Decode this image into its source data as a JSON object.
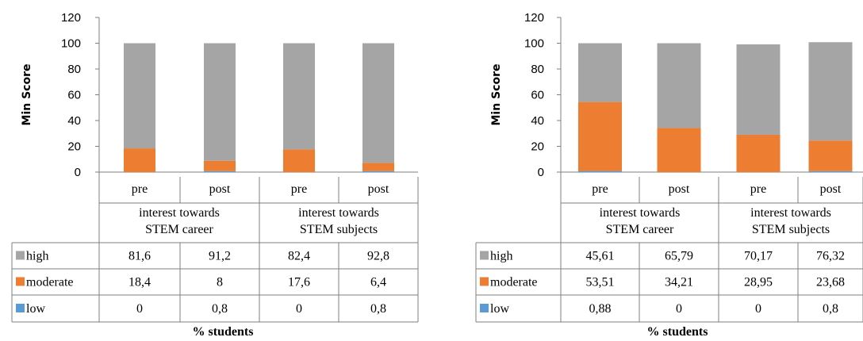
{
  "chart_data": [
    {
      "type": "bar",
      "stacked": true,
      "ylabel": "Min Score",
      "xlabel": "% students",
      "ylim": [
        0,
        120
      ],
      "yticks": [
        "0",
        "20",
        "40",
        "60",
        "80",
        "100",
        "120"
      ],
      "categories": [
        "pre",
        "post",
        "pre",
        "post"
      ],
      "groups": [
        {
          "label_line1": "interest towards",
          "label_line2": "STEM career"
        },
        {
          "label_line1": "interest towards",
          "label_line2": "STEM subjects"
        }
      ],
      "series": [
        {
          "name": "high",
          "color": "#a5a5a5",
          "values": [
            81.6,
            91.2,
            82.4,
            92.8
          ],
          "labels": [
            "81,6",
            "91,2",
            "82,4",
            "92,8"
          ]
        },
        {
          "name": "moderate",
          "color": "#ed7d31",
          "values": [
            18.4,
            8,
            17.6,
            6.4
          ],
          "labels": [
            "18,4",
            "8",
            "17,6",
            "6,4"
          ]
        },
        {
          "name": "low",
          "color": "#5b9bd5",
          "values": [
            0,
            0.8,
            0,
            0.8
          ],
          "labels": [
            "0",
            "0,8",
            "0",
            "0,8"
          ]
        }
      ]
    },
    {
      "type": "bar",
      "stacked": true,
      "ylabel": "Min Score",
      "xlabel": "% students",
      "ylim": [
        0,
        120
      ],
      "yticks": [
        "0",
        "20",
        "40",
        "60",
        "80",
        "100",
        "120"
      ],
      "categories": [
        "pre",
        "post",
        "pre",
        "post"
      ],
      "groups": [
        {
          "label_line1": "interest towards",
          "label_line2": "STEM career"
        },
        {
          "label_line1": "interest towards",
          "label_line2": "STEM subjects"
        }
      ],
      "series": [
        {
          "name": "high",
          "color": "#a5a5a5",
          "values": [
            45.61,
            65.79,
            70.17,
            76.32
          ],
          "labels": [
            "45,61",
            "65,79",
            "70,17",
            "76,32"
          ]
        },
        {
          "name": "moderate",
          "color": "#ed7d31",
          "values": [
            53.51,
            34.21,
            28.95,
            23.68
          ],
          "labels": [
            "53,51",
            "34,21",
            "28,95",
            "23,68"
          ]
        },
        {
          "name": "low",
          "color": "#5b9bd5",
          "values": [
            0.88,
            0,
            0,
            0.8
          ],
          "labels": [
            "0,88",
            "0",
            "0",
            "0,8"
          ]
        }
      ]
    }
  ]
}
